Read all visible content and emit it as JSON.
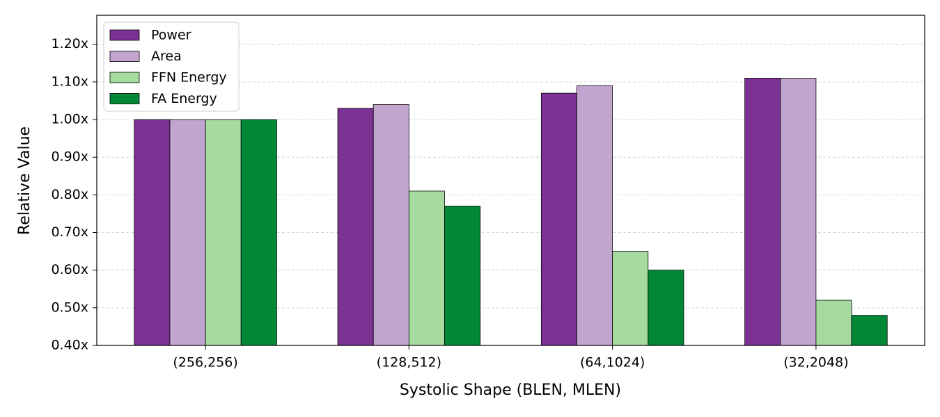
{
  "chart_data": {
    "type": "bar",
    "xlabel": "Systolic Shape (BLEN, MLEN)",
    "ylabel": "Relative Value",
    "categories": [
      "(256,256)",
      "(128,512)",
      "(64,1024)",
      "(32,2048)"
    ],
    "series": [
      {
        "name": "Power",
        "color": "#7b3294",
        "values": [
          1.0,
          1.03,
          1.07,
          1.11
        ]
      },
      {
        "name": "Area",
        "color": "#c2a5cf",
        "values": [
          1.0,
          1.04,
          1.09,
          1.11
        ]
      },
      {
        "name": "FFN Energy",
        "color": "#a6dba0",
        "values": [
          1.0,
          0.81,
          0.65,
          0.52
        ]
      },
      {
        "name": "FA Energy",
        "color": "#008837",
        "values": [
          1.0,
          0.77,
          0.6,
          0.48
        ]
      }
    ],
    "ylim": [
      0.4,
      1.277
    ],
    "yticks": [
      {
        "value": 0.4,
        "label": "0.40x"
      },
      {
        "value": 0.5,
        "label": "0.50x"
      },
      {
        "value": 0.6,
        "label": "0.60x"
      },
      {
        "value": 0.7,
        "label": "0.70x"
      },
      {
        "value": 0.8,
        "label": "0.80x"
      },
      {
        "value": 0.9,
        "label": "0.90x"
      },
      {
        "value": 1.0,
        "label": "1.00x"
      },
      {
        "value": 1.1,
        "label": "1.10x"
      },
      {
        "value": 1.2,
        "label": "1.20x"
      }
    ],
    "grid": true,
    "legend": "upper left"
  }
}
